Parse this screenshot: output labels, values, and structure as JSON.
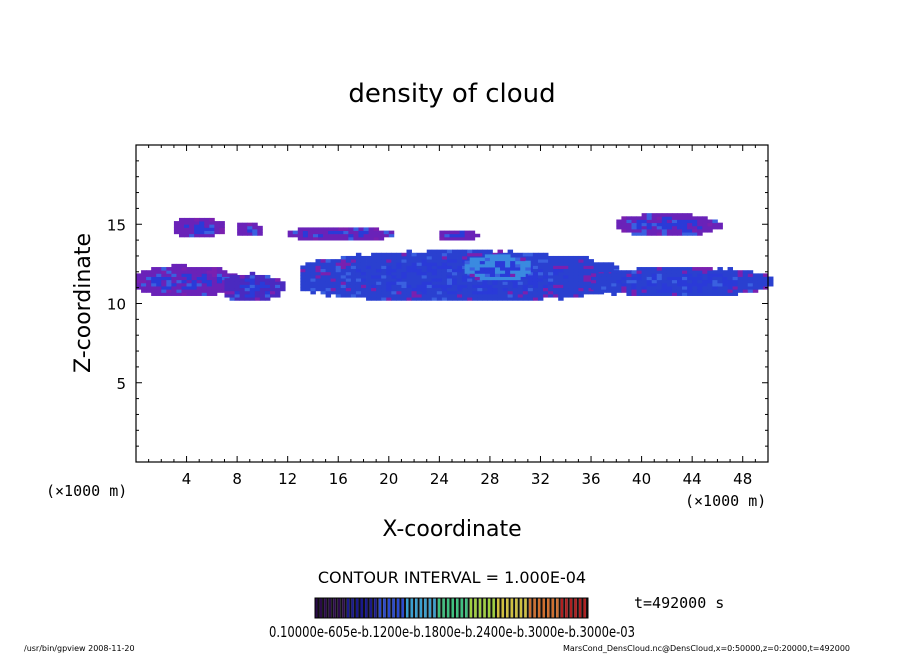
{
  "chart_data": {
    "type": "heatmap",
    "title": "density of cloud",
    "xlabel": "X-coordinate",
    "ylabel": "Z-coordinate",
    "x_units": "(×1000 m)",
    "y_units": "(×1000 m)",
    "xlim": [
      0,
      50
    ],
    "ylim": [
      0,
      20
    ],
    "x_ticks": [
      "4",
      "8",
      "12",
      "16",
      "20",
      "24",
      "28",
      "32",
      "36",
      "40",
      "44",
      "48"
    ],
    "y_ticks": [
      "5",
      "10",
      "15"
    ],
    "contour_interval_text": "CONTOUR INTERVAL = 1.000E-04",
    "time_text": "t=492000  s",
    "colorbar_labels_text": "0.10000e-605e-b.1200e-b.1800e-b.2400e-b.3000e-b.3000e-03",
    "colorbar_colors": [
      "#2a0a4a",
      "#1a1a8a",
      "#2a4ad0",
      "#3aa0d0",
      "#40c080",
      "#a0d040",
      "#d0c040",
      "#d07030",
      "#b02020"
    ],
    "footer_left": "/usr/bin/gpview   2008-11-20",
    "footer_right": "MarsCond_DensCloud.nc@DensCloud,x=0:50000,z=0:20000,t=492000",
    "cloud_regions": [
      {
        "x": [
          0,
          8
        ],
        "z": [
          10.5,
          12.3
        ],
        "level": "low"
      },
      {
        "x": [
          3,
          7
        ],
        "z": [
          14.2,
          15.4
        ],
        "level": "low"
      },
      {
        "x": [
          7,
          11.5
        ],
        "z": [
          10.2,
          11.8
        ],
        "level": "low-mid"
      },
      {
        "x": [
          8,
          10
        ],
        "z": [
          14.3,
          15.1
        ],
        "level": "low"
      },
      {
        "x": [
          12,
          20
        ],
        "z": [
          14.0,
          14.8
        ],
        "level": "low"
      },
      {
        "x": [
          13,
          38
        ],
        "z": [
          10.2,
          13.2
        ],
        "level": "mid"
      },
      {
        "x": [
          26,
          31
        ],
        "z": [
          11.5,
          13.0
        ],
        "level": "high"
      },
      {
        "x": [
          24,
          27
        ],
        "z": [
          14.0,
          14.6
        ],
        "level": "low"
      },
      {
        "x": [
          36,
          50
        ],
        "z": [
          10.5,
          12.2
        ],
        "level": "mid"
      },
      {
        "x": [
          38,
          46
        ],
        "z": [
          14.3,
          15.6
        ],
        "level": "low"
      }
    ],
    "level_colors": {
      "low": "#6a22b8",
      "low-mid": "#4a2ac0",
      "mid": "#2a40d0",
      "high": "#3a8ae0"
    },
    "grid": false
  }
}
